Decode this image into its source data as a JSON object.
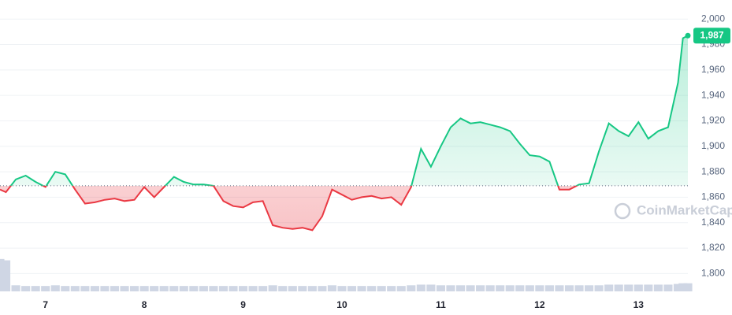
{
  "chart_data": {
    "type": "line",
    "watermark": "CoinMarketCap",
    "x": [
      6.54,
      6.6,
      6.7,
      6.8,
      6.9,
      7.0,
      7.1,
      7.2,
      7.3,
      7.4,
      7.5,
      7.6,
      7.7,
      7.8,
      7.9,
      8.0,
      8.1,
      8.2,
      8.3,
      8.4,
      8.5,
      8.6,
      8.7,
      8.8,
      8.9,
      9.0,
      9.1,
      9.2,
      9.3,
      9.4,
      9.5,
      9.6,
      9.7,
      9.8,
      9.9,
      10.0,
      10.1,
      10.2,
      10.3,
      10.4,
      10.5,
      10.6,
      10.7,
      10.8,
      10.9,
      11.0,
      11.1,
      11.2,
      11.3,
      11.4,
      11.5,
      11.6,
      11.7,
      11.8,
      11.9,
      12.0,
      12.1,
      12.2,
      12.3,
      12.4,
      12.5,
      12.6,
      12.7,
      12.8,
      12.9,
      13.0,
      13.1,
      13.2,
      13.3,
      13.4,
      13.45,
      13.5
    ],
    "series": [
      {
        "color_up": "#16c784",
        "color_down": "#ea3943",
        "values": [
          1866,
          1864,
          1874,
          1877,
          1872,
          1868,
          1880,
          1878,
          1866,
          1855,
          1856,
          1858,
          1859,
          1857,
          1858,
          1868,
          1860,
          1868,
          1876,
          1872,
          1870,
          1870,
          1869,
          1857,
          1853,
          1852,
          1856,
          1857,
          1838,
          1836,
          1835,
          1836,
          1834,
          1845,
          1866,
          1862,
          1858,
          1860,
          1861,
          1859,
          1860,
          1854,
          1868,
          1898,
          1884,
          1900,
          1915,
          1922,
          1918,
          1919,
          1917,
          1915,
          1912,
          1902,
          1893,
          1892,
          1888,
          1866,
          1866,
          1870,
          1871,
          1896,
          1918,
          1912,
          1908,
          1919,
          1906,
          1912,
          1915,
          1950,
          1985,
          1987
        ]
      }
    ],
    "volume": {
      "color": "#cfd6e4",
      "values": [
        48,
        46,
        9,
        8,
        8,
        8,
        9,
        8,
        8,
        8,
        8,
        8,
        8,
        8,
        8,
        8,
        8,
        8,
        8,
        8,
        8,
        8,
        8,
        8,
        8,
        8,
        8,
        8,
        9,
        8,
        8,
        8,
        8,
        8,
        9,
        8,
        8,
        8,
        8,
        8,
        8,
        8,
        9,
        10,
        10,
        9,
        9,
        9,
        9,
        9,
        9,
        9,
        9,
        9,
        9,
        9,
        9,
        9,
        9,
        9,
        9,
        9,
        10,
        10,
        10,
        10,
        10,
        10,
        10,
        11,
        12,
        12
      ]
    },
    "volume_ylim": [
      0,
      70
    ],
    "reference": 1869,
    "last_value": {
      "value": 1987,
      "label": "1,987"
    },
    "xlim": [
      6.54,
      13.5
    ],
    "xticks": [
      7,
      8,
      9,
      10,
      11,
      12,
      13
    ],
    "ylim": [
      1786,
      2015
    ],
    "yticks": [
      {
        "value": 1800,
        "label": "1,800"
      },
      {
        "value": 1820,
        "label": "1,820"
      },
      {
        "value": 1840,
        "label": "1,840"
      },
      {
        "value": 1860,
        "label": "1,860"
      },
      {
        "value": 1880,
        "label": "1,880"
      },
      {
        "value": 1900,
        "label": "1,900"
      },
      {
        "value": 1920,
        "label": "1,920"
      },
      {
        "value": 1940,
        "label": "1,940"
      },
      {
        "value": 1960,
        "label": "1,960"
      },
      {
        "value": 1980,
        "label": "1,980"
      },
      {
        "value": 2000,
        "label": "2,000"
      }
    ],
    "grid": true
  }
}
